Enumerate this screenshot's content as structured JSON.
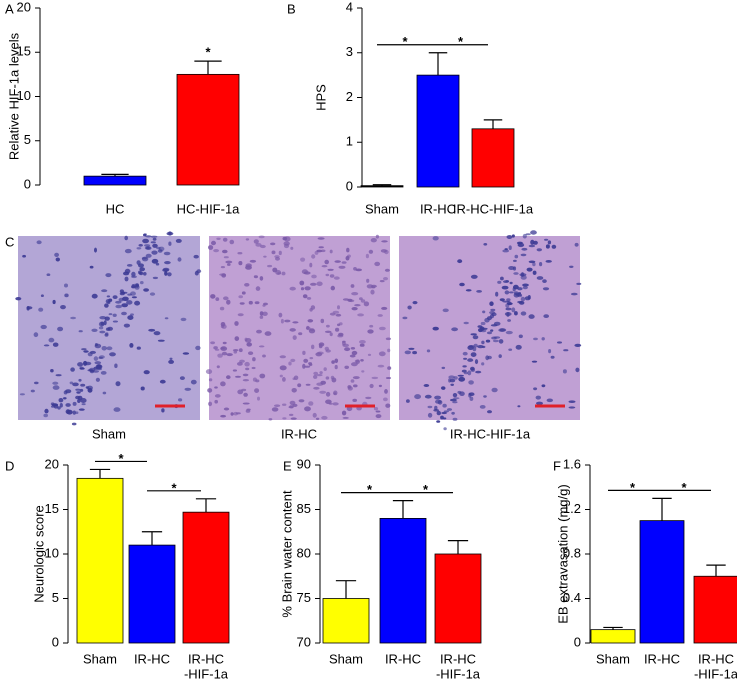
{
  "chart_data": [
    {
      "type": "bar",
      "label": "A",
      "ylabel": "Relative HIF-1a levels",
      "categories": [
        [
          "HC"
        ],
        [
          "HC-HIF-1a"
        ]
      ],
      "values": [
        1,
        12.5
      ],
      "errors": [
        0.2,
        1.5
      ],
      "colors": [
        "#0000ff",
        "#ff0000"
      ],
      "ylim": [
        0,
        20
      ],
      "yticks": [
        0,
        5,
        10,
        15,
        20
      ],
      "significance": [
        {
          "label": "*",
          "from": 1,
          "to": 1
        }
      ]
    },
    {
      "type": "bar",
      "label": "B",
      "ylabel": "HPS",
      "categories": [
        [
          "Sham"
        ],
        [
          "IR-HC"
        ],
        [
          "IR-HC-HIF-1a"
        ]
      ],
      "values": [
        0.03,
        2.5,
        1.3
      ],
      "errors": [
        0.02,
        0.5,
        0.2
      ],
      "colors": [
        "#000000",
        "#0000ff",
        "#ff0000"
      ],
      "ylim": [
        0,
        4
      ],
      "yticks": [
        0,
        1,
        2,
        3,
        4
      ],
      "significance": [
        {
          "label": "*",
          "from": 0,
          "to": 1
        },
        {
          "label": "*",
          "from": 1,
          "to": 2
        }
      ]
    },
    {
      "type": "bar",
      "label": "D",
      "ylabel": "Neurologic score",
      "categories": [
        [
          "Sham"
        ],
        [
          "IR-HC"
        ],
        [
          "IR-HC",
          "-HIF-1a"
        ]
      ],
      "values": [
        18.5,
        11,
        14.7
      ],
      "errors": [
        1,
        1.5,
        1.5
      ],
      "colors": [
        "#ffff00",
        "#0000ff",
        "#ff0000"
      ],
      "ylim": [
        0,
        20
      ],
      "yticks": [
        0,
        5,
        10,
        15,
        20
      ],
      "significance": [
        {
          "label": "*",
          "from": 0,
          "to": 1
        },
        {
          "label": "*",
          "from": 1,
          "to": 2
        }
      ]
    },
    {
      "type": "bar",
      "label": "E",
      "ylabel": "% Brain water content",
      "categories": [
        [
          "Sham"
        ],
        [
          "IR-HC"
        ],
        [
          "IR-HC",
          "-HIF-1a"
        ]
      ],
      "values": [
        75,
        84,
        80
      ],
      "errors": [
        2,
        2,
        1.5
      ],
      "colors": [
        "#ffff00",
        "#0000ff",
        "#ff0000"
      ],
      "ylim": [
        70,
        90
      ],
      "yticks": [
        70,
        75,
        80,
        85,
        90
      ],
      "significance": [
        {
          "label": "*",
          "from": 0,
          "to": 1
        },
        {
          "label": "*",
          "from": 1,
          "to": 2
        }
      ]
    },
    {
      "type": "bar",
      "label": "F",
      "ylabel": "EB extravasation (mg/g)",
      "categories": [
        [
          "Sham"
        ],
        [
          "IR-HC"
        ],
        [
          "IR-HC",
          "-HIF-1a"
        ]
      ],
      "values": [
        0.12,
        1.1,
        0.6
      ],
      "errors": [
        0.02,
        0.2,
        0.1
      ],
      "colors": [
        "#ffff00",
        "#0000ff",
        "#ff0000"
      ],
      "ylim": [
        0,
        1.6
      ],
      "yticks": [
        0,
        0.4,
        0.8,
        1.2,
        1.6
      ],
      "significance": [
        {
          "label": "*",
          "from": 0,
          "to": 1
        },
        {
          "label": "*",
          "from": 1,
          "to": 2
        }
      ]
    }
  ],
  "micrographs": {
    "label": "C",
    "captions": [
      "Sham",
      "IR-HC",
      "IR-HC-HIF-1a"
    ]
  }
}
